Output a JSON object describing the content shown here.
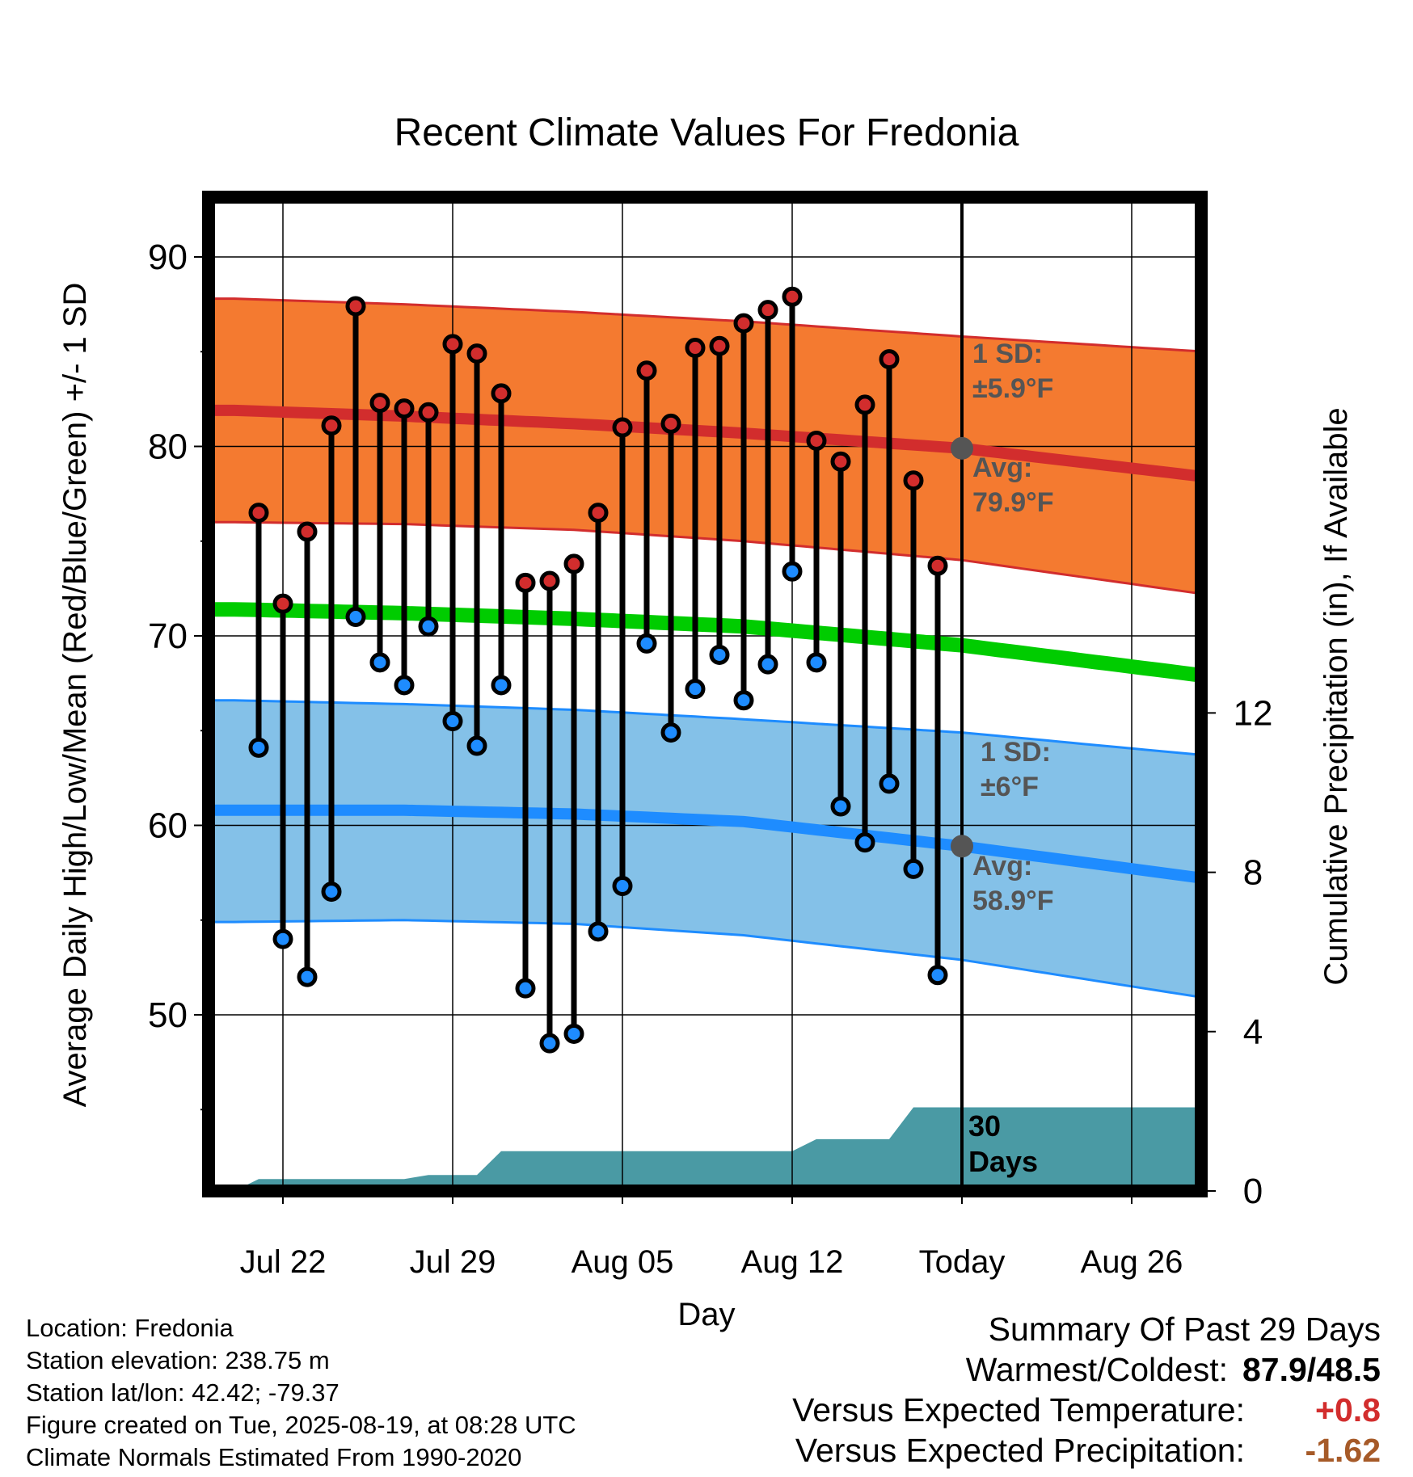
{
  "chart_data": {
    "type": "line",
    "title": "Recent Climate Values For Fredonia",
    "xlabel": "Day",
    "ylabel": "Average Daily High/Low/Mean (Red/Blue/Green) +/- 1 SD",
    "y2label": "Cumulative Precipitation (in), If Available",
    "ylim": [
      40,
      93
    ],
    "y2lim": [
      0,
      15
    ],
    "y_ticks": [
      50,
      60,
      70,
      80,
      90
    ],
    "y2_ticks": [
      0,
      4,
      8,
      12
    ],
    "x_tick_labels": [
      "Jul 22",
      "Jul 29",
      "Aug 05",
      "Aug 12",
      "Today",
      "Aug 26"
    ],
    "grid": true,
    "series": [
      {
        "name": "High",
        "color": "#d22d2d",
        "x": [
          "2025-07-21",
          "2025-07-22",
          "2025-07-23",
          "2025-07-24",
          "2025-07-25",
          "2025-07-26",
          "2025-07-27",
          "2025-07-28",
          "2025-07-29",
          "2025-07-30",
          "2025-07-31",
          "2025-08-01",
          "2025-08-02",
          "2025-08-03",
          "2025-08-04",
          "2025-08-05",
          "2025-08-06",
          "2025-08-07",
          "2025-08-08",
          "2025-08-09",
          "2025-08-10",
          "2025-08-11",
          "2025-08-12",
          "2025-08-13",
          "2025-08-14",
          "2025-08-15",
          "2025-08-16",
          "2025-08-17",
          "2025-08-18"
        ],
        "values": [
          76.5,
          71.7,
          75.5,
          81.1,
          87.4,
          82.3,
          82.0,
          81.8,
          85.4,
          84.9,
          82.8,
          72.8,
          72.9,
          73.8,
          76.5,
          81.0,
          84.0,
          81.2,
          85.2,
          85.3,
          86.5,
          87.2,
          87.9,
          80.3,
          79.2,
          82.2,
          84.6,
          78.2,
          73.7
        ]
      },
      {
        "name": "Low",
        "color": "#1e8cff",
        "x": [
          "2025-07-21",
          "2025-07-22",
          "2025-07-23",
          "2025-07-24",
          "2025-07-25",
          "2025-07-26",
          "2025-07-27",
          "2025-07-28",
          "2025-07-29",
          "2025-07-30",
          "2025-07-31",
          "2025-08-01",
          "2025-08-02",
          "2025-08-03",
          "2025-08-04",
          "2025-08-05",
          "2025-08-06",
          "2025-08-07",
          "2025-08-08",
          "2025-08-09",
          "2025-08-10",
          "2025-08-11",
          "2025-08-12",
          "2025-08-13",
          "2025-08-14",
          "2025-08-15",
          "2025-08-16",
          "2025-08-17",
          "2025-08-18"
        ],
        "values": [
          64.1,
          54.0,
          52.0,
          56.5,
          71.0,
          68.6,
          67.4,
          70.5,
          65.5,
          64.2,
          67.4,
          51.4,
          48.5,
          49.0,
          54.4,
          56.8,
          69.6,
          64.9,
          67.2,
          69.0,
          66.6,
          68.5,
          73.4,
          68.6,
          61.0,
          59.1,
          62.2,
          57.7,
          52.1
        ]
      }
    ],
    "normals": {
      "x": [
        "2025-07-20",
        "2025-07-27",
        "2025-08-03",
        "2025-08-10",
        "2025-08-19",
        "2025-08-29"
      ],
      "high_avg": [
        81.9,
        81.6,
        81.2,
        80.7,
        79.9,
        78.4
      ],
      "high_sd_upper": [
        87.8,
        87.5,
        87.1,
        86.6,
        85.8,
        85.0
      ],
      "high_sd_lower": [
        76.0,
        75.9,
        75.6,
        75.0,
        74.0,
        72.2
      ],
      "low_avg": [
        60.8,
        60.8,
        60.6,
        60.2,
        58.9,
        57.2
      ],
      "low_sd_upper": [
        66.6,
        66.4,
        66.1,
        65.6,
        64.9,
        63.7
      ],
      "low_sd_lower": [
        54.9,
        55.0,
        54.8,
        54.2,
        52.9,
        50.9
      ],
      "mean": [
        71.4,
        71.2,
        70.9,
        70.5,
        69.5,
        67.9
      ]
    },
    "precip_cumulative": {
      "x": [
        "2025-07-20",
        "2025-07-21",
        "2025-07-27",
        "2025-07-28",
        "2025-07-30",
        "2025-07-31",
        "2025-08-12",
        "2025-08-13",
        "2025-08-16",
        "2025-08-17",
        "2025-08-29"
      ],
      "values": [
        0.0,
        0.3,
        0.3,
        0.4,
        0.4,
        1.0,
        1.0,
        1.3,
        1.3,
        2.1,
        2.1
      ]
    },
    "annotations": {
      "today_date": "2025-08-19",
      "high_sd_text": "1 SD:",
      "high_sd_value": "±5.9°F",
      "high_avg_text": "Avg:",
      "high_avg_value": "79.9°F",
      "low_sd_text": "1 SD:",
      "low_sd_value": "±6°F",
      "low_avg_text": "Avg:",
      "low_avg_value": "58.9°F",
      "precip_days_line1": "30",
      "precip_days_line2": "Days"
    },
    "colors": {
      "high_band": "#f47a30",
      "high_avg": "#d22d2d",
      "low_band": "#84c1e8",
      "low_avg": "#1e8cff",
      "mean_line": "#00cc00",
      "precip": "#4a9aa4",
      "annotation_text": "#555555"
    }
  },
  "info": {
    "location": "Location: Fredonia",
    "elevation": "Station elevation: 238.75 m",
    "latlon": "Station lat/lon: 42.42; -79.37",
    "created": "Figure created on Tue, 2025-08-19, at 08:28 UTC",
    "normals": "Climate Normals Estimated From 1990-2020"
  },
  "summary": {
    "title": "Summary Of Past 29 Days",
    "warm_cold_label": "Warmest/Coldest:",
    "warm_cold_value": "87.9/48.5",
    "temp_label": "Versus Expected Temperature:",
    "temp_value": "+0.8",
    "precip_label": "Versus Expected Precipitation:",
    "precip_value": "-1.62"
  }
}
